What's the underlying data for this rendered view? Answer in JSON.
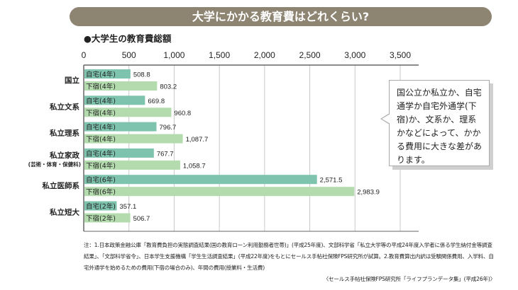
{
  "banner": "大学にかかる教育費はどれくらい?",
  "chart_data": {
    "type": "bar",
    "orientation": "horizontal",
    "title": "●大学生の教育費総額",
    "xlim": [
      0,
      3500
    ],
    "ticks": [
      "0",
      "500",
      "1,000",
      "1,500",
      "2,000",
      "2,500",
      "3,000",
      "3,500"
    ],
    "tick_values": [
      0,
      500,
      1000,
      1500,
      2000,
      2500,
      3000,
      3500
    ],
    "grid": true,
    "colors": {
      "自宅": "#7ec3ad",
      "下宿": "#b4dbae"
    },
    "groups": [
      {
        "label": "国立",
        "sublabel": "",
        "bars": [
          {
            "label": "自宅(4年)",
            "type": "自宅",
            "value": 508.8,
            "text": "508.8"
          },
          {
            "label": "下宿(4年)",
            "type": "下宿",
            "value": 803.2,
            "text": "803.2"
          }
        ]
      },
      {
        "label": "私立文系",
        "sublabel": "",
        "bars": [
          {
            "label": "自宅(4年)",
            "type": "自宅",
            "value": 669.8,
            "text": "669.8"
          },
          {
            "label": "下宿(4年)",
            "type": "下宿",
            "value": 960.8,
            "text": "960.8"
          }
        ]
      },
      {
        "label": "私立理系",
        "sublabel": "",
        "bars": [
          {
            "label": "自宅(4年)",
            "type": "自宅",
            "value": 796.7,
            "text": "796.7"
          },
          {
            "label": "下宿(4年)",
            "type": "下宿",
            "value": 1087.7,
            "text": "1,087.7"
          }
        ]
      },
      {
        "label": "私立家政",
        "sublabel": "(芸術・体育・保健科)",
        "bars": [
          {
            "label": "自宅(4年)",
            "type": "自宅",
            "value": 767.7,
            "text": "767.7"
          },
          {
            "label": "下宿(4年)",
            "type": "下宿",
            "value": 1058.7,
            "text": "1,058.7"
          }
        ]
      },
      {
        "label": "私立医師系",
        "sublabel": "",
        "bars": [
          {
            "label": "自宅(6年)",
            "type": "自宅",
            "value": 2571.5,
            "text": "2,571.5"
          },
          {
            "label": "下宿(6年)",
            "type": "下宿",
            "value": 2983.9,
            "text": "2,983.9"
          }
        ]
      },
      {
        "label": "私立短大",
        "sublabel": "",
        "bars": [
          {
            "label": "自宅(2年)",
            "type": "自宅",
            "value": 357.1,
            "text": "357.1"
          },
          {
            "label": "下宿(2年)",
            "type": "下宿",
            "value": 506.7,
            "text": "506.7"
          }
        ]
      }
    ]
  },
  "callout": "国公立か私立か、自宅通学か自宅外通学(下宿)か、文系か、理系かなどによって、かかる費用に大きな差があります。",
  "note": "注：1.日本政策金融公庫「教育費負担の実態調査結果(国の教育ローン利用勤務者世帯)」(平成25年度)、文部科学省「私立大学等の平成24年度入学者に係る学生納付金等調査結果」、「文部科学省令」、日本学生支援機構「学生生活調査結果」(平成22年度)をもとにセールス手帖社保険FPS研究所が試算。2.教育費算出内訳は受験関係費用、入学料、自宅外通学を始めるための費用(下宿の場合のみ)、年間の費用(授業料・生活費)",
  "source": "〈セールス手帖社保険FPS研究所「ライフプランデータ集」(平成26年)〉"
}
